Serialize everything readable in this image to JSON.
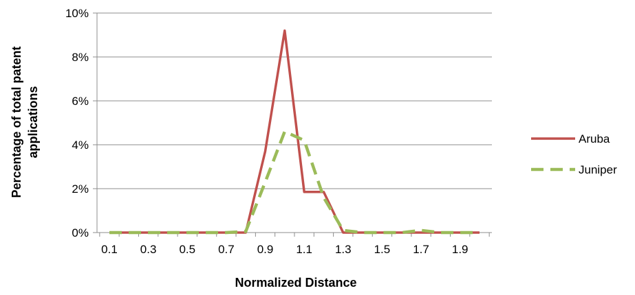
{
  "chart_data": {
    "type": "line",
    "xlabel": "Normalized Distance",
    "ylabel_lines": [
      "Percentage of total patent",
      "applications"
    ],
    "x": [
      0.1,
      0.2,
      0.3,
      0.4,
      0.5,
      0.6,
      0.7,
      0.8,
      0.9,
      1.0,
      1.1,
      1.2,
      1.3,
      1.4,
      1.5,
      1.6,
      1.7,
      1.8,
      1.9,
      2.0
    ],
    "x_tick_labels": [
      "0.1",
      "0.3",
      "0.5",
      "0.7",
      "0.9",
      "1.1",
      "1.3",
      "1.5",
      "1.7",
      "1.9"
    ],
    "y_ticks": [
      0,
      2,
      4,
      6,
      8,
      10
    ],
    "y_tick_labels": [
      "0%",
      "2%",
      "4%",
      "6%",
      "8%",
      "10%"
    ],
    "ylim": [
      0,
      10
    ],
    "grid": "horizontal",
    "legend_position": "right",
    "series": [
      {
        "name": "Aruba",
        "color": "#c0504d",
        "style": "solid",
        "values": [
          0,
          0,
          0,
          0,
          0,
          0,
          0,
          0,
          3.7,
          9.2,
          1.85,
          1.85,
          0,
          0,
          0,
          0,
          0,
          0,
          0,
          0
        ]
      },
      {
        "name": "Juniper",
        "color": "#9bbb59",
        "style": "dashed",
        "values": [
          0,
          0,
          0,
          0,
          0,
          0,
          0,
          0.05,
          2.3,
          4.6,
          4.2,
          1.6,
          0.1,
          0,
          0,
          0,
          0.1,
          0,
          0,
          0
        ]
      }
    ]
  }
}
